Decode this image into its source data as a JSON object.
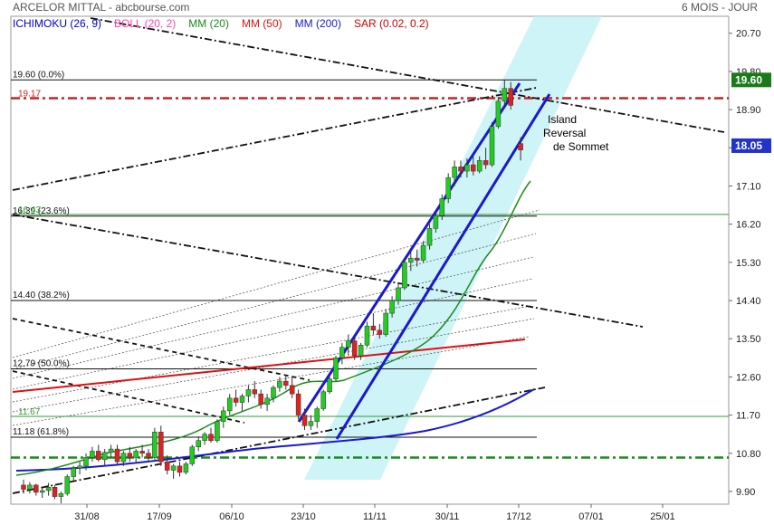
{
  "header": {
    "title": "ARCELOR MITTAL - abcbourse.com",
    "period": "6 MOIS - JOUR"
  },
  "legend": [
    {
      "label": "ICHIMOKU (26, 9)",
      "color": "#0000cc"
    },
    {
      "label": "BOLL (20, 2)",
      "color": "#ff44aa"
    },
    {
      "label": "MM (20)",
      "color": "#1a8a1a"
    },
    {
      "label": "MM (50)",
      "color": "#dd1111"
    },
    {
      "label": "MM (200)",
      "color": "#1a1acc"
    },
    {
      "label": "SAR (0.02, 0.2)",
      "color": "#cc0000"
    }
  ],
  "chart_data": {
    "type": "candlestick",
    "ylim": [
      9.6,
      21.1
    ],
    "y_ticks": [
      "20.70",
      "19.80",
      "18.90",
      "18.00",
      "17.10",
      "16.20",
      "15.30",
      "14.40",
      "13.50",
      "12.60",
      "11.70",
      "10.80",
      "9.90"
    ],
    "x_ticks": [
      "31/08",
      "17/09",
      "06/10",
      "23/10",
      "11/11",
      "30/11",
      "17/12",
      "07/01",
      "25/01"
    ],
    "fibonacci": [
      {
        "label": "19.60  (0.0%)",
        "value": 19.6
      },
      {
        "label": "16.39  (23.6%)",
        "value": 16.39
      },
      {
        "label": "14.40  (38.2%)",
        "value": 14.4
      },
      {
        "label": "12.79  (50.0%)",
        "value": 12.79
      },
      {
        "label": "11.18  (61.8%)",
        "value": 11.18
      }
    ],
    "levels": [
      {
        "label": "19.17",
        "value": 19.17,
        "color": "#cc2222",
        "style": "dashdot"
      },
      {
        "label": "16.43",
        "value": 16.43,
        "color": "#339933",
        "style": "solid"
      },
      {
        "label": "11.67",
        "value": 11.67,
        "color": "#339933",
        "style": "solid"
      },
      {
        "label": "",
        "value": 10.7,
        "color": "#1a8a1a",
        "style": "dashdot"
      }
    ],
    "price_tags": [
      {
        "label": "19.60",
        "value": 19.6,
        "bg": "#1a7a1a",
        "fg": "#ffffff"
      },
      {
        "label": "18.05",
        "value": 18.05,
        "bg": "#2233cc",
        "fg": "#ffffff"
      }
    ],
    "annotation": [
      "Island",
      "Reversal",
      "de Sommet"
    ],
    "candles": [
      [
        10.05,
        10.18,
        9.85,
        9.95
      ],
      [
        9.95,
        10.12,
        9.85,
        10.05
      ],
      [
        10.05,
        10.08,
        9.8,
        9.88
      ],
      [
        9.88,
        10.0,
        9.75,
        9.92
      ],
      [
        9.92,
        10.1,
        9.8,
        10.0
      ],
      [
        10.0,
        10.05,
        9.72,
        9.78
      ],
      [
        9.78,
        9.9,
        9.62,
        9.85
      ],
      [
        9.85,
        10.3,
        9.8,
        10.25
      ],
      [
        10.25,
        10.5,
        10.15,
        10.45
      ],
      [
        10.45,
        10.6,
        10.3,
        10.5
      ],
      [
        10.5,
        10.8,
        10.4,
        10.7
      ],
      [
        10.7,
        10.95,
        10.6,
        10.85
      ],
      [
        10.85,
        11.0,
        10.6,
        10.65
      ],
      [
        10.65,
        10.9,
        10.5,
        10.82
      ],
      [
        10.82,
        11.0,
        10.7,
        10.9
      ],
      [
        10.9,
        11.0,
        10.55,
        10.6
      ],
      [
        10.6,
        10.85,
        10.5,
        10.8
      ],
      [
        10.8,
        10.95,
        10.6,
        10.7
      ],
      [
        10.7,
        10.9,
        10.55,
        10.85
      ],
      [
        10.85,
        11.0,
        10.7,
        10.8
      ],
      [
        10.8,
        10.9,
        10.6,
        10.7
      ],
      [
        10.7,
        11.4,
        10.65,
        11.3
      ],
      [
        11.3,
        11.45,
        10.5,
        10.6
      ],
      [
        10.6,
        10.75,
        10.3,
        10.4
      ],
      [
        10.4,
        10.55,
        10.2,
        10.5
      ],
      [
        10.5,
        10.6,
        10.25,
        10.35
      ],
      [
        10.35,
        10.6,
        10.3,
        10.55
      ],
      [
        10.55,
        11.0,
        10.5,
        10.95
      ],
      [
        10.95,
        11.2,
        10.85,
        11.1
      ],
      [
        11.1,
        11.3,
        11.0,
        11.25
      ],
      [
        11.25,
        11.4,
        11.05,
        11.1
      ],
      [
        11.1,
        11.6,
        11.05,
        11.55
      ],
      [
        11.55,
        11.9,
        11.4,
        11.8
      ],
      [
        11.8,
        12.2,
        11.7,
        12.1
      ],
      [
        12.1,
        12.3,
        11.9,
        12.0
      ],
      [
        12.0,
        12.2,
        11.8,
        12.15
      ],
      [
        12.15,
        12.4,
        12.0,
        12.3
      ],
      [
        12.3,
        12.5,
        12.1,
        12.2
      ],
      [
        12.2,
        12.3,
        11.85,
        11.95
      ],
      [
        11.95,
        12.2,
        11.8,
        12.1
      ],
      [
        12.1,
        12.4,
        12.0,
        12.35
      ],
      [
        12.35,
        12.6,
        12.25,
        12.5
      ],
      [
        12.5,
        12.65,
        12.3,
        12.4
      ],
      [
        12.4,
        12.6,
        12.1,
        12.2
      ],
      [
        12.2,
        12.3,
        11.6,
        11.7
      ],
      [
        11.7,
        11.85,
        11.35,
        11.45
      ],
      [
        11.45,
        11.7,
        11.35,
        11.55
      ],
      [
        11.55,
        11.9,
        11.4,
        11.85
      ],
      [
        11.85,
        12.3,
        11.8,
        12.25
      ],
      [
        12.25,
        12.6,
        12.2,
        12.55
      ],
      [
        12.55,
        13.1,
        12.5,
        13.05
      ],
      [
        13.05,
        13.4,
        12.9,
        13.3
      ],
      [
        13.3,
        13.6,
        13.1,
        13.45
      ],
      [
        13.45,
        13.55,
        13.0,
        13.1
      ],
      [
        13.1,
        13.4,
        13.0,
        13.35
      ],
      [
        13.35,
        13.9,
        13.3,
        13.8
      ],
      [
        13.8,
        14.1,
        13.6,
        13.7
      ],
      [
        13.7,
        13.85,
        13.5,
        13.6
      ],
      [
        13.6,
        14.2,
        13.55,
        14.1
      ],
      [
        14.1,
        14.5,
        14.0,
        14.4
      ],
      [
        14.4,
        14.8,
        14.3,
        14.7
      ],
      [
        14.7,
        15.4,
        14.65,
        15.3
      ],
      [
        15.3,
        15.55,
        15.1,
        15.4
      ],
      [
        15.4,
        15.6,
        15.2,
        15.35
      ],
      [
        15.35,
        15.8,
        15.3,
        15.7
      ],
      [
        15.7,
        16.2,
        15.6,
        16.1
      ],
      [
        16.1,
        16.5,
        16.0,
        16.4
      ],
      [
        16.4,
        16.9,
        16.3,
        16.8
      ],
      [
        16.8,
        17.4,
        16.7,
        17.3
      ],
      [
        17.3,
        17.7,
        17.1,
        17.55
      ],
      [
        17.55,
        17.7,
        17.3,
        17.45
      ],
      [
        17.45,
        17.75,
        17.3,
        17.6
      ],
      [
        17.6,
        17.8,
        17.35,
        17.45
      ],
      [
        17.45,
        17.8,
        17.4,
        17.7
      ],
      [
        17.7,
        18.0,
        17.5,
        17.6
      ],
      [
        17.6,
        18.6,
        17.55,
        18.5
      ],
      [
        18.5,
        19.2,
        18.45,
        19.1
      ],
      [
        19.1,
        19.6,
        19.0,
        19.4
      ],
      [
        19.4,
        19.55,
        18.9,
        19.0
      ],
      [
        18.1,
        18.25,
        17.7,
        17.95
      ]
    ]
  }
}
